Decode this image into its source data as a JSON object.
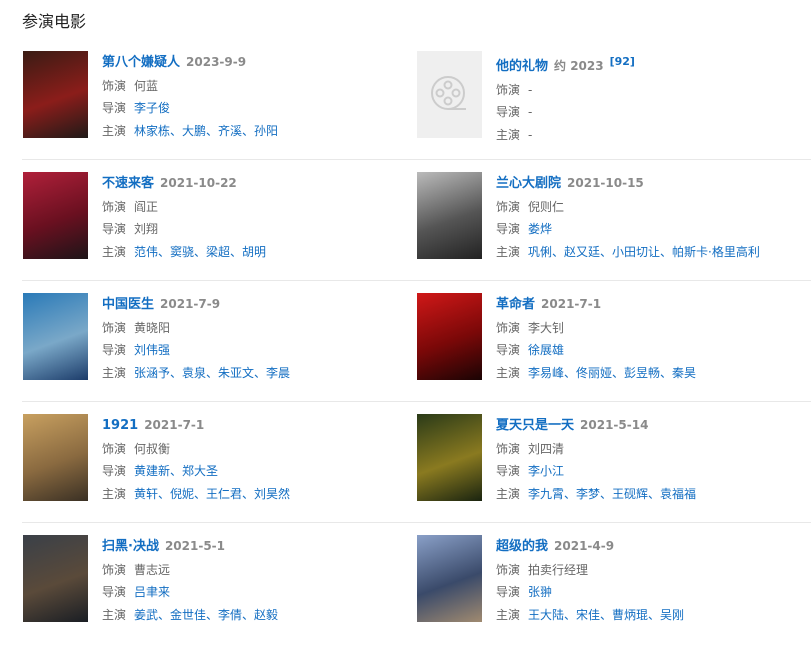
{
  "section_title": "参演电影",
  "labels": {
    "role": "饰演",
    "director": "导演",
    "cast": "主演"
  },
  "films": [
    {
      "title": "第八个嫌疑人",
      "date": "2023-9-9",
      "role": "何蓝",
      "director": "李子俊",
      "cast": "林家栋、大鹏、齐溪、孙阳",
      "director_link": true,
      "poster_colors": [
        "#3a1c14",
        "#8b1d1a",
        "#1f1a18"
      ]
    },
    {
      "title": "他的礼物",
      "date": "约 2023",
      "ref": "[92]",
      "role": "-",
      "director": "-",
      "cast": "-",
      "placeholder": true,
      "placeholder_icon": "film-reel-icon"
    },
    {
      "title": "不速来客",
      "date": "2021-10-22",
      "role": "阎正",
      "director": "刘翔",
      "cast": "范伟、窦骁、梁超、胡明",
      "director_link": false,
      "poster_colors": [
        "#b0203a",
        "#6a1020",
        "#1d1418"
      ]
    },
    {
      "title": "兰心大剧院",
      "date": "2021-10-15",
      "role": "倪则仁",
      "director": "娄烨",
      "cast": "巩俐、赵又廷、小田切让、帕斯卡·格里高利",
      "director_link": true,
      "poster_colors": [
        "#bbbbbb",
        "#555555",
        "#222222"
      ]
    },
    {
      "title": "中国医生",
      "date": "2021-7-9",
      "role": "黄晓阳",
      "director": "刘伟强",
      "cast": "张涵予、袁泉、朱亚文、李晨",
      "director_link": true,
      "poster_colors": [
        "#2a7ab8",
        "#7aa8c8",
        "#1c3c6a"
      ]
    },
    {
      "title": "革命者",
      "date": "2021-7-1",
      "role": "李大钊",
      "director": "徐展雄",
      "cast": "李易峰、佟丽娅、彭昱畅、秦昊",
      "director_link": true,
      "poster_colors": [
        "#d01818",
        "#7a0808",
        "#1a0404"
      ]
    },
    {
      "title": "1921",
      "date": "2021-7-1",
      "role": "何叔衡",
      "director": "黄建新、郑大圣",
      "cast": "黄轩、倪妮、王仁君、刘昊然",
      "director_link": true,
      "poster_colors": [
        "#c8a060",
        "#8a6a40",
        "#3a3024"
      ]
    },
    {
      "title": "夏天只是一天",
      "date": "2021-5-14",
      "role": "刘四清",
      "director": "李小江",
      "cast": "李九霄、李梦、王砚辉、袁福福",
      "director_link": true,
      "poster_colors": [
        "#2a3a18",
        "#8a7a20",
        "#1a2410"
      ]
    },
    {
      "title": "扫黑·决战",
      "date": "2021-5-1",
      "role": "曹志远",
      "director": "吕聿来",
      "cast": "姜武、金世佳、李倩、赵毅",
      "director_link": true,
      "poster_colors": [
        "#3a4048",
        "#5a4a3a",
        "#1a1e24"
      ]
    },
    {
      "title": "超级的我",
      "date": "2021-4-9",
      "role": "拍卖行经理",
      "director": "张翀",
      "cast": "王大陆、宋佳、曹炳琨、吴刚",
      "director_link": true,
      "poster_colors": [
        "#8aa0c8",
        "#3a4a6a",
        "#a08a70"
      ]
    }
  ]
}
